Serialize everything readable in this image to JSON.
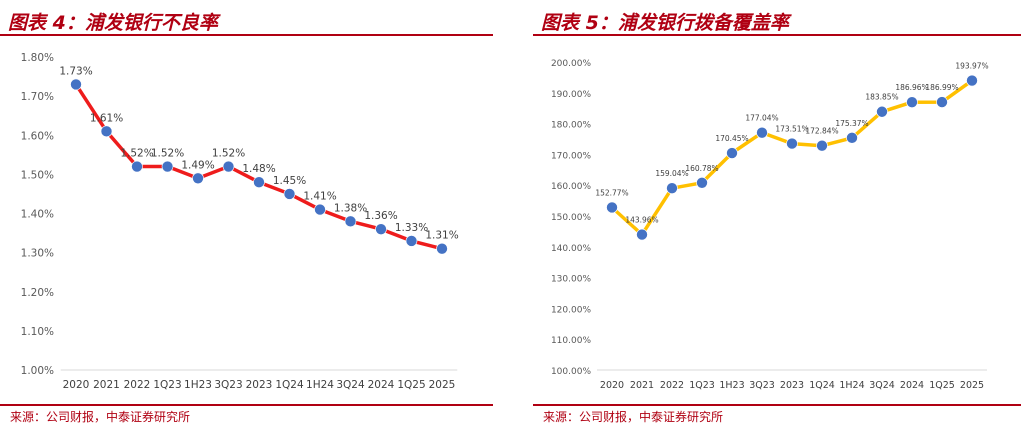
{
  "charts": [
    {
      "id": "npl",
      "title": "图表 4：浦发银行不良率",
      "source": "来源：公司财报，中泰证券研究所",
      "color": "#ee1c1c",
      "marker_color": "#4472c4"
    },
    {
      "id": "coverage",
      "title": "图表 5：浦发银行拨备覆盖率",
      "source": "来源：公司财报，中泰证券研究所",
      "color": "#ffc000",
      "marker_color": "#4472c4"
    }
  ],
  "chart_data": [
    {
      "type": "line",
      "title": "浦发银行不良率",
      "categories": [
        "2020",
        "2021",
        "2022",
        "1Q23",
        "1H23",
        "3Q23",
        "2023",
        "1Q24",
        "1H24",
        "3Q24",
        "2024",
        "1Q25",
        "2025"
      ],
      "values": [
        1.73,
        1.61,
        1.52,
        1.52,
        1.49,
        1.52,
        1.48,
        1.45,
        1.41,
        1.38,
        1.36,
        1.33,
        1.31
      ],
      "value_labels": [
        "1.73%",
        "1.61%",
        "1.52%",
        "1.52%",
        "1.49%",
        "1.52%",
        "1.48%",
        "1.45%",
        "1.41%",
        "1.38%",
        "1.36%",
        "1.33%",
        "1.31%"
      ],
      "y_ticks": [
        "1.00%",
        "1.10%",
        "1.20%",
        "1.30%",
        "1.40%",
        "1.50%",
        "1.60%",
        "1.70%",
        "1.80%"
      ],
      "ylim": [
        1.0,
        1.8
      ],
      "grid": false,
      "legend": "none"
    },
    {
      "type": "line",
      "title": "浦发银行拨备覆盖率",
      "categories": [
        "2020",
        "2021",
        "2022",
        "1Q23",
        "1H23",
        "3Q23",
        "2023",
        "1Q24",
        "1H24",
        "3Q24",
        "2024",
        "1Q25",
        "2025"
      ],
      "values": [
        152.77,
        143.96,
        159.04,
        160.78,
        170.45,
        177.04,
        173.51,
        172.84,
        175.37,
        183.85,
        186.96,
        186.99,
        193.97
      ],
      "value_labels": [
        "152.77%",
        "143.96%",
        "159.04%",
        "160.78%",
        "170.45%",
        "177.04%",
        "173.51%",
        "172.84%",
        "175.37%",
        "183.85%",
        "186.96%",
        "186.99%",
        "193.97%"
      ],
      "y_ticks": [
        "100.00%",
        "110.00%",
        "120.00%",
        "130.00%",
        "140.00%",
        "150.00%",
        "160.00%",
        "170.00%",
        "180.00%",
        "190.00%",
        "200.00%"
      ],
      "ylim": [
        100,
        200
      ],
      "grid": false,
      "legend": "none"
    }
  ]
}
